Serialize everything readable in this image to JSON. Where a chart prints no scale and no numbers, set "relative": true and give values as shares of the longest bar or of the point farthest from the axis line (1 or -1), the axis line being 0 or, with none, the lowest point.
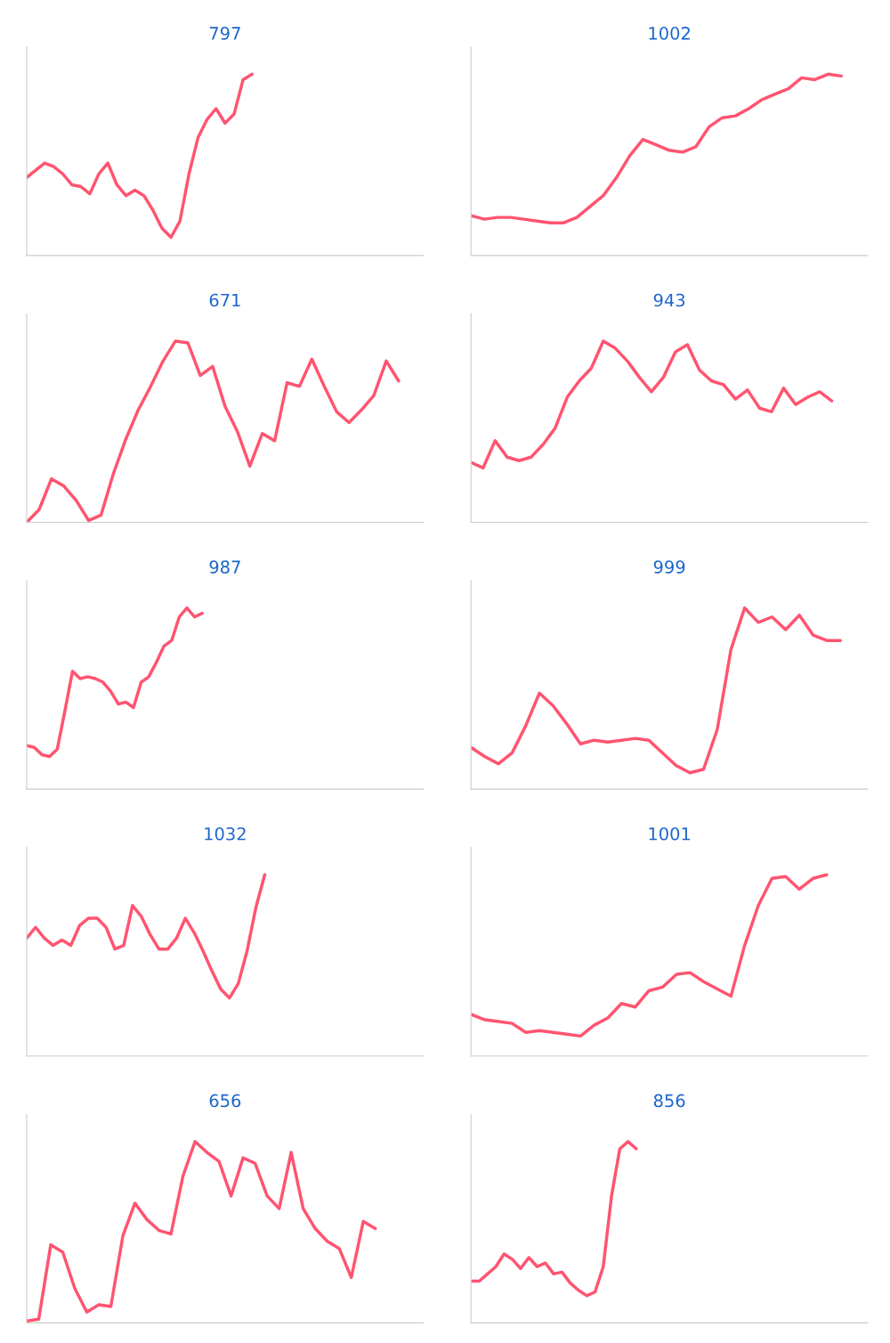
{
  "chart_data": [
    {
      "type": "line",
      "title": "797",
      "relative": true,
      "color": "#ff5470",
      "categories": [
        null,
        null,
        null,
        null,
        null,
        null,
        null,
        null,
        null,
        null,
        null,
        null,
        null,
        null,
        null,
        null,
        null,
        null,
        null,
        null,
        null,
        null,
        null,
        null,
        null,
        null,
        null,
        null,
        null,
        null,
        null,
        null,
        null,
        null,
        null,
        null,
        null,
        null,
        null,
        null,
        null,
        null,
        null,
        null,
        null
      ],
      "values": [
        0.43,
        0.47,
        0.51,
        0.49,
        0.45,
        0.39,
        0.38,
        0.34,
        0.45,
        0.51,
        0.39,
        0.33,
        0.36,
        0.33,
        0.25,
        0.15,
        0.1,
        0.19,
        0.45,
        0.65,
        0.75,
        0.81,
        0.73,
        0.78,
        0.97,
        1,
        null,
        null,
        null,
        null,
        null,
        null,
        null,
        null,
        null,
        null,
        null,
        null,
        null,
        null,
        null,
        null,
        null,
        null,
        null
      ]
    },
    {
      "type": "line",
      "title": "1002",
      "relative": true,
      "color": "#ff5470",
      "categories": [
        null,
        null,
        null,
        null,
        null,
        null,
        null,
        null,
        null,
        null,
        null,
        null,
        null,
        null,
        null,
        null,
        null,
        null,
        null,
        null,
        null,
        null,
        null,
        null,
        null,
        null,
        null,
        null,
        null,
        null,
        null
      ],
      "values": [
        0.22,
        0.2,
        0.21,
        0.21,
        0.2,
        0.19,
        0.18,
        0.18,
        0.21,
        0.27,
        0.33,
        0.43,
        0.55,
        0.64,
        0.61,
        0.58,
        0.57,
        0.6,
        0.71,
        0.76,
        0.77,
        0.81,
        0.86,
        0.89,
        0.92,
        0.98,
        0.97,
        1,
        0.99,
        null,
        null
      ]
    },
    {
      "type": "line",
      "title": "671",
      "relative": true,
      "color": "#ff5470",
      "categories": [
        null,
        null,
        null,
        null,
        null,
        null,
        null,
        null,
        null,
        null,
        null,
        null,
        null,
        null,
        null,
        null,
        null,
        null,
        null,
        null,
        null,
        null,
        null,
        null,
        null,
        null,
        null,
        null,
        null,
        null,
        null,
        null,
        null
      ],
      "values": [
        0,
        0.07,
        0.24,
        0.2,
        0.12,
        0.01,
        0.04,
        0.27,
        0.46,
        0.62,
        0.75,
        0.89,
        1,
        0.99,
        0.81,
        0.86,
        0.64,
        0.5,
        0.31,
        0.49,
        0.45,
        0.77,
        0.75,
        0.9,
        0.75,
        0.61,
        0.55,
        0.62,
        0.7,
        0.89,
        0.78,
        null,
        null
      ]
    },
    {
      "type": "line",
      "title": "943",
      "relative": true,
      "color": "#ff5470",
      "categories": [
        null,
        null,
        null,
        null,
        null,
        null,
        null,
        null,
        null,
        null,
        null,
        null,
        null,
        null,
        null,
        null,
        null,
        null,
        null,
        null,
        null,
        null,
        null,
        null,
        null,
        null,
        null,
        null,
        null,
        null,
        null,
        null,
        null,
        null
      ],
      "values": [
        0.33,
        0.3,
        0.45,
        0.36,
        0.34,
        0.36,
        0.43,
        0.52,
        0.69,
        0.78,
        0.85,
        1,
        0.96,
        0.89,
        0.8,
        0.72,
        0.8,
        0.94,
        0.98,
        0.84,
        0.78,
        0.76,
        0.68,
        0.73,
        0.63,
        0.61,
        0.74,
        0.65,
        0.69,
        0.72,
        0.67,
        null,
        null,
        null
      ]
    },
    {
      "type": "line",
      "title": "987",
      "relative": true,
      "color": "#ff5470",
      "categories": [
        null,
        null,
        null,
        null,
        null,
        null,
        null,
        null,
        null,
        null,
        null,
        null,
        null,
        null,
        null,
        null,
        null,
        null,
        null,
        null,
        null,
        null,
        null,
        null,
        null,
        null,
        null,
        null,
        null,
        null,
        null,
        null,
        null,
        null,
        null,
        null,
        null,
        null,
        null,
        null,
        null,
        null,
        null,
        null,
        null,
        null,
        null,
        null,
        null,
        null,
        null,
        null,
        null
      ],
      "values": [
        0.24,
        0.23,
        0.19,
        0.18,
        0.22,
        0.43,
        0.65,
        0.61,
        0.62,
        0.61,
        0.59,
        0.54,
        0.47,
        0.48,
        0.45,
        0.59,
        0.62,
        0.7,
        0.79,
        0.82,
        0.95,
        1,
        0.95,
        0.97,
        null,
        null,
        null,
        null,
        null,
        null,
        null,
        null,
        null,
        null,
        null,
        null,
        null,
        null,
        null,
        null,
        null,
        null,
        null,
        null,
        null,
        null,
        null,
        null,
        null,
        null,
        null,
        null,
        null
      ]
    },
    {
      "type": "line",
      "title": "999",
      "relative": true,
      "color": "#ff5470",
      "categories": [
        null,
        null,
        null,
        null,
        null,
        null,
        null,
        null,
        null,
        null,
        null,
        null,
        null,
        null,
        null,
        null,
        null,
        null,
        null,
        null,
        null,
        null,
        null,
        null,
        null,
        null,
        null,
        null,
        null,
        null
      ],
      "values": [
        0.23,
        0.18,
        0.14,
        0.2,
        0.35,
        0.53,
        0.46,
        0.36,
        0.25,
        0.27,
        0.26,
        0.27,
        0.28,
        0.27,
        0.2,
        0.13,
        0.09,
        0.11,
        0.33,
        0.77,
        1,
        0.92,
        0.95,
        0.88,
        0.96,
        0.85,
        0.82,
        0.82,
        null,
        null
      ]
    },
    {
      "type": "line",
      "title": "1032",
      "relative": true,
      "color": "#ff5470",
      "categories": [
        null,
        null,
        null,
        null,
        null,
        null,
        null,
        null,
        null,
        null,
        null,
        null,
        null,
        null,
        null,
        null,
        null,
        null,
        null,
        null,
        null,
        null,
        null,
        null,
        null,
        null,
        null,
        null,
        null,
        null,
        null,
        null,
        null,
        null,
        null,
        null,
        null,
        null,
        null,
        null,
        null,
        null,
        null,
        null,
        null,
        null
      ],
      "values": [
        0.65,
        0.71,
        0.65,
        0.61,
        0.64,
        0.61,
        0.72,
        0.76,
        0.76,
        0.71,
        0.59,
        0.61,
        0.83,
        0.77,
        0.67,
        0.59,
        0.59,
        0.65,
        0.76,
        0.68,
        0.58,
        0.47,
        0.37,
        0.32,
        0.4,
        0.58,
        0.82,
        1,
        null,
        null,
        null,
        null,
        null,
        null,
        null,
        null,
        null,
        null,
        null,
        null,
        null,
        null,
        null,
        null,
        null,
        null
      ]
    },
    {
      "type": "line",
      "title": "1001",
      "relative": true,
      "color": "#ff5470",
      "categories": [
        null,
        null,
        null,
        null,
        null,
        null,
        null,
        null,
        null,
        null,
        null,
        null,
        null,
        null,
        null,
        null,
        null,
        null,
        null,
        null,
        null,
        null,
        null,
        null,
        null,
        null,
        null,
        null,
        null,
        null
      ],
      "values": [
        0.23,
        0.2,
        0.19,
        0.18,
        0.13,
        0.14,
        0.13,
        0.12,
        0.11,
        0.17,
        0.21,
        0.29,
        0.27,
        0.36,
        0.38,
        0.45,
        0.46,
        0.41,
        0.37,
        0.33,
        0.61,
        0.83,
        0.98,
        0.99,
        0.92,
        0.98,
        1,
        null,
        null,
        null
      ]
    },
    {
      "type": "line",
      "title": "656",
      "relative": true,
      "color": "#ff5470",
      "categories": [
        null,
        null,
        null,
        null,
        null,
        null,
        null,
        null,
        null,
        null,
        null,
        null,
        null,
        null,
        null,
        null,
        null,
        null,
        null,
        null,
        null,
        null,
        null,
        null,
        null,
        null,
        null,
        null,
        null,
        null,
        null,
        null,
        null,
        null
      ],
      "values": [
        0.01,
        0.02,
        0.43,
        0.39,
        0.19,
        0.06,
        0.1,
        0.09,
        0.48,
        0.66,
        0.57,
        0.51,
        0.49,
        0.81,
        1,
        0.94,
        0.89,
        0.7,
        0.91,
        0.88,
        0.7,
        0.63,
        0.94,
        0.63,
        0.52,
        0.45,
        0.41,
        0.25,
        0.56,
        0.52,
        null,
        null,
        null,
        null
      ]
    },
    {
      "type": "line",
      "title": "856",
      "relative": true,
      "color": "#ff5470",
      "categories": [
        null,
        null,
        null,
        null,
        null,
        null,
        null,
        null,
        null,
        null,
        null,
        null,
        null,
        null,
        null,
        null,
        null,
        null,
        null,
        null,
        null,
        null,
        null,
        null,
        null,
        null,
        null,
        null,
        null,
        null,
        null,
        null,
        null,
        null,
        null,
        null,
        null,
        null,
        null,
        null,
        null,
        null,
        null,
        null,
        null,
        null,
        null,
        null,
        null
      ],
      "values": [
        0.23,
        0.23,
        0.27,
        0.31,
        0.38,
        0.35,
        0.3,
        0.36,
        0.31,
        0.33,
        0.27,
        0.28,
        0.22,
        0.18,
        0.15,
        0.17,
        0.31,
        0.7,
        0.96,
        1,
        0.96,
        null,
        null,
        null,
        null,
        null,
        null,
        null,
        null,
        null,
        null,
        null,
        null,
        null,
        null,
        null,
        null,
        null,
        null,
        null,
        null,
        null,
        null,
        null,
        null,
        null,
        null,
        null,
        null
      ]
    }
  ]
}
